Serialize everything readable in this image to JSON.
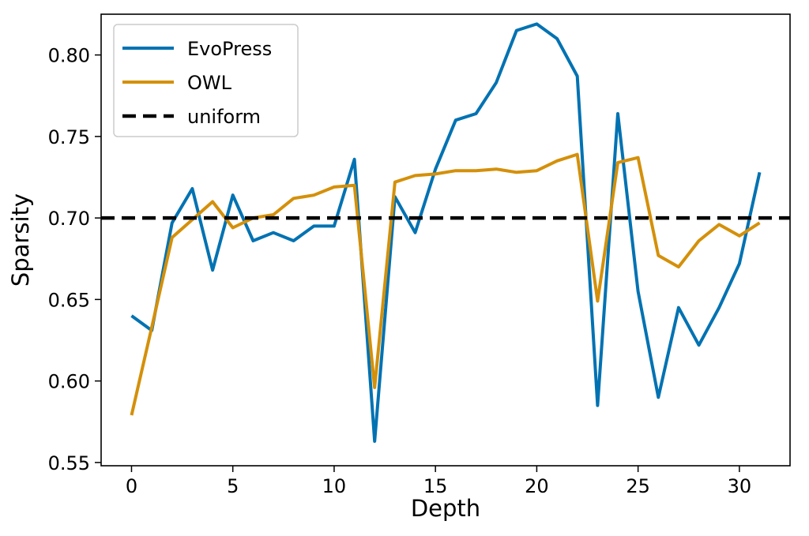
{
  "chart_data": {
    "type": "line",
    "xlabel": "Depth",
    "ylabel": "Sparsity",
    "xlim": [
      -1.5,
      32.5
    ],
    "ylim": [
      0.548,
      0.825
    ],
    "xticks": [
      0,
      5,
      10,
      15,
      20,
      25,
      30
    ],
    "yticks": [
      0.55,
      0.6,
      0.65,
      0.7,
      0.75,
      0.8
    ],
    "ytick_labels": [
      "0.55",
      "0.60",
      "0.65",
      "0.70",
      "0.75",
      "0.80"
    ],
    "grid": false,
    "legend_position": "top-left",
    "series": [
      {
        "name": "EvoPress",
        "color": "#0072B2",
        "style": "solid",
        "x": [
          0,
          1,
          2,
          3,
          4,
          5,
          6,
          7,
          8,
          9,
          10,
          11,
          12,
          13,
          14,
          15,
          16,
          17,
          18,
          19,
          20,
          21,
          22,
          23,
          24,
          25,
          26,
          27,
          28,
          29,
          30,
          31
        ],
        "values": [
          0.64,
          0.631,
          0.697,
          0.718,
          0.668,
          0.714,
          0.686,
          0.691,
          0.686,
          0.695,
          0.695,
          0.736,
          0.563,
          0.713,
          0.691,
          0.73,
          0.76,
          0.764,
          0.783,
          0.815,
          0.819,
          0.81,
          0.787,
          0.585,
          0.764,
          0.655,
          0.59,
          0.645,
          0.622,
          0.645,
          0.672,
          0.728
        ]
      },
      {
        "name": "OWL",
        "color": "#D4900A",
        "style": "solid",
        "x": [
          0,
          1,
          2,
          3,
          4,
          5,
          6,
          7,
          8,
          9,
          10,
          11,
          12,
          13,
          14,
          15,
          16,
          17,
          18,
          19,
          20,
          21,
          22,
          23,
          24,
          25,
          26,
          27,
          28,
          29,
          30,
          31
        ],
        "values": [
          0.579,
          0.633,
          0.688,
          0.699,
          0.71,
          0.694,
          0.7,
          0.702,
          0.712,
          0.714,
          0.719,
          0.72,
          0.596,
          0.722,
          0.726,
          0.727,
          0.729,
          0.729,
          0.73,
          0.728,
          0.729,
          0.735,
          0.739,
          0.649,
          0.734,
          0.737,
          0.677,
          0.67,
          0.686,
          0.696,
          0.689,
          0.697
        ]
      },
      {
        "name": "uniform",
        "color": "#000000",
        "style": "dashed",
        "y_constant": 0.7
      }
    ]
  }
}
